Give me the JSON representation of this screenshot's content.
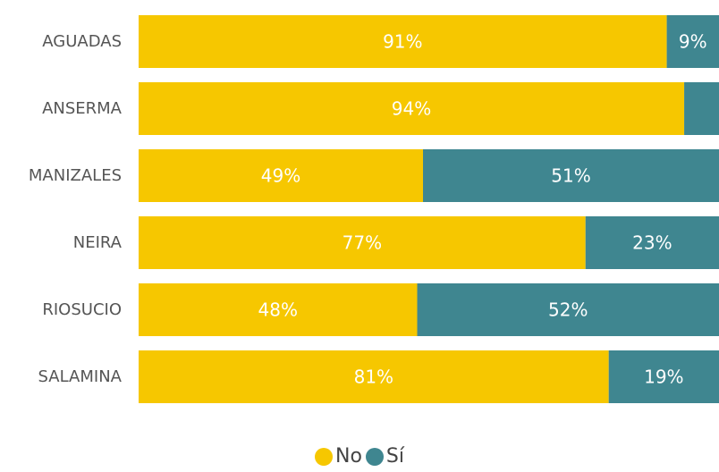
{
  "chart_data": {
    "type": "bar",
    "orientation": "horizontal",
    "stacked": true,
    "categories": [
      "AGUADAS",
      "ANSERMA",
      "MANIZALES",
      "NEIRA",
      "RIOSUCIO",
      "SALAMINA"
    ],
    "series": [
      {
        "name": "No",
        "values": [
          91,
          94,
          49,
          77,
          48,
          81
        ],
        "labels": [
          "91%",
          "94%",
          "49%",
          "77%",
          "48%",
          "81%"
        ],
        "color": "#F6C700"
      },
      {
        "name": "Sí",
        "values": [
          9,
          6,
          51,
          23,
          52,
          19
        ],
        "labels": [
          "9%",
          "",
          "51%",
          "23%",
          "52%",
          "19%"
        ],
        "color": "#3F8690"
      }
    ],
    "xlim": [
      0,
      100
    ],
    "grid": false,
    "legend_position": "bottom-center"
  }
}
